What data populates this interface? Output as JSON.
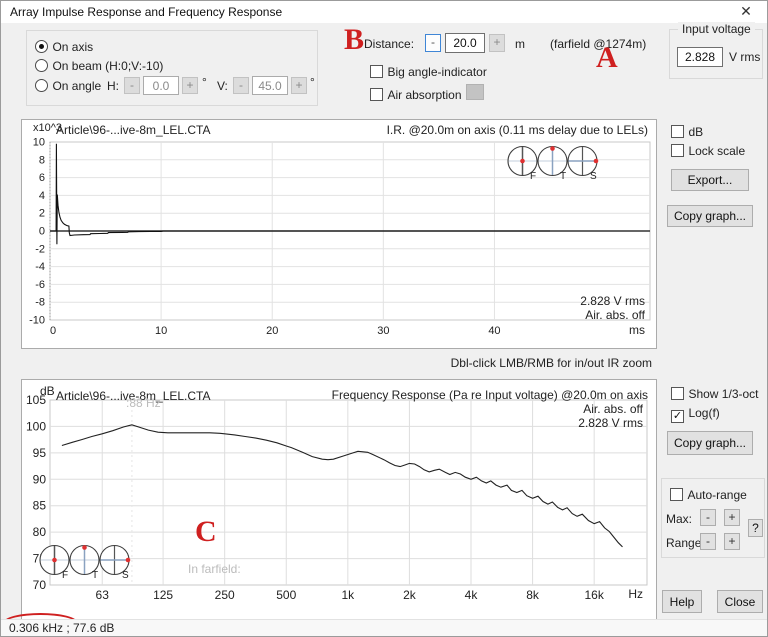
{
  "window": {
    "title": "Array Impulse Response and Frequency Response",
    "close_icon": "✕"
  },
  "top": {
    "position_group": {
      "radios": [
        {
          "label": "On axis",
          "selected": true
        },
        {
          "label": "On beam (H:0;V:-10)",
          "selected": false
        },
        {
          "label": "On angle",
          "selected": false
        }
      ],
      "h_label": "H:",
      "h_value": "0.0",
      "v_label": "V:",
      "v_value": "45.0",
      "minus": "-",
      "plus": "+",
      "degree": "°"
    },
    "distance": {
      "label": "Distance:",
      "minus": "-",
      "value": "20.0",
      "plus": "+",
      "unit": "m",
      "farfield": "(farfield @1274m)"
    },
    "big_angle_label": "Big angle-indicator",
    "air_absorption_label": "Air absorption",
    "input_voltage": {
      "title": "Input voltage",
      "value": "2.828",
      "unit": "V rms"
    }
  },
  "annotations": {
    "a": "A",
    "b": "B",
    "c": "C"
  },
  "ir_chart": {
    "unit_label": "x10^3",
    "file_label": "Article\\96-...ive-8m_LEL.CTA",
    "title": "I.R. @20.0m on axis (0.11 ms delay due to LELs)",
    "overlay_line1": "2.828 V rms",
    "overlay_line2": "Air. abs. off",
    "x_unit": "ms",
    "dials": [
      "F",
      "T",
      "S"
    ]
  },
  "ir_hint": "Dbl-click LMB/RMB for in/out IR zoom",
  "fr_chart": {
    "unit_label": "dB",
    "file_label": "Article\\96-...ive-8m_LEL.CTA",
    "title": "Frequency Response (Pa re Input voltage) @20.0m on axis",
    "overlay_line1": "Air. abs. off",
    "overlay_line2": "2.828 V rms",
    "cursor_label": ":88 Hz",
    "cursor_freq": 88,
    "farfield_label": "In farfield:",
    "x_unit": "Hz",
    "dials": [
      "F",
      "T",
      "S"
    ]
  },
  "right_panel": {
    "ir": {
      "db_label": "dB",
      "lock_scale_label": "Lock scale",
      "export_button": "Export...",
      "copy_button": "Copy graph..."
    },
    "fr": {
      "third_oct_label": "Show 1/3-oct",
      "logf_label": "Log(f)",
      "logf_check": "✓",
      "copy_button": "Copy graph...",
      "auto_range_label": "Auto-range",
      "max_label": "Max:",
      "range_label": "Range:",
      "minus": "-",
      "plus": "+",
      "help_mark": "?"
    },
    "help_button": "Help",
    "close_button": "Close"
  },
  "status_bar": {
    "text": "0.306 kHz ; 77.6 dB"
  },
  "chart_data": [
    {
      "type": "line",
      "title": "I.R. @20.0m on axis (0.11 ms delay due to LELs)",
      "xlabel": "ms",
      "ylabel": "x10^3 (linear amplitude)",
      "xlim": [
        0,
        54
      ],
      "ylim": [
        -10,
        10
      ],
      "x_ticks": [
        0,
        10,
        20,
        30,
        40
      ],
      "y_ticks": [
        10,
        8,
        6,
        4,
        2,
        0,
        -2,
        -4,
        -6,
        -8,
        -10
      ],
      "grid": true,
      "legend": "none",
      "points": [
        [
          0,
          0
        ],
        [
          0.55,
          0
        ],
        [
          0.58,
          9.8
        ],
        [
          0.62,
          -1.5
        ],
        [
          0.66,
          4.1
        ],
        [
          0.72,
          2.9
        ],
        [
          0.8,
          2.1
        ],
        [
          0.9,
          1.55
        ],
        [
          1.0,
          1.2
        ],
        [
          1.15,
          0.92
        ],
        [
          1.3,
          0.75
        ],
        [
          1.5,
          0.62
        ],
        [
          1.7,
          0.55
        ],
        [
          1.74,
          -0.2
        ],
        [
          1.8,
          -0.5
        ],
        [
          2.2,
          -0.45
        ],
        [
          3.0,
          -0.42
        ],
        [
          3.6,
          -0.4
        ],
        [
          3.65,
          -0.3
        ],
        [
          4.5,
          -0.28
        ],
        [
          5.2,
          -0.26
        ],
        [
          5.25,
          -0.18
        ],
        [
          6.5,
          -0.16
        ],
        [
          7.0,
          -0.15
        ],
        [
          7.05,
          -0.09
        ],
        [
          8.0,
          -0.07
        ],
        [
          9.0,
          -0.05
        ],
        [
          10.0,
          -0.04
        ],
        [
          10.2,
          0
        ],
        [
          45,
          0
        ]
      ]
    },
    {
      "type": "line",
      "x_scale": "log",
      "title": "Frequency Response (Pa re Input voltage) @20.0m on axis",
      "xlabel": "Hz",
      "ylabel": "dB",
      "xlim": [
        35,
        29000
      ],
      "ylim": [
        70,
        105
      ],
      "x_ticks": [
        {
          "v": 63,
          "label": "63"
        },
        {
          "v": 125,
          "label": "125"
        },
        {
          "v": 250,
          "label": "250"
        },
        {
          "v": 500,
          "label": "500"
        },
        {
          "v": 1000,
          "label": "1k"
        },
        {
          "v": 2000,
          "label": "2k"
        },
        {
          "v": 4000,
          "label": "4k"
        },
        {
          "v": 8000,
          "label": "8k"
        },
        {
          "v": 16000,
          "label": "16k"
        }
      ],
      "y_ticks": [
        105,
        100,
        95,
        90,
        85,
        80,
        75,
        70
      ],
      "grid": true,
      "legend": "none",
      "points": [
        [
          40,
          96.4
        ],
        [
          45,
          97.0
        ],
        [
          50,
          97.5
        ],
        [
          56,
          98.1
        ],
        [
          63,
          98.6
        ],
        [
          71,
          99.2
        ],
        [
          80,
          99.9
        ],
        [
          88,
          100.3
        ],
        [
          95,
          99.9
        ],
        [
          106,
          99.3
        ],
        [
          118,
          98.9
        ],
        [
          132,
          98.8
        ],
        [
          150,
          98.8
        ],
        [
          170,
          98.8
        ],
        [
          190,
          98.8
        ],
        [
          212,
          98.8
        ],
        [
          237,
          98.7
        ],
        [
          250,
          98.6
        ],
        [
          280,
          98.4
        ],
        [
          315,
          98.1
        ],
        [
          355,
          97.8
        ],
        [
          400,
          97.4
        ],
        [
          450,
          96.9
        ],
        [
          500,
          96.3
        ],
        [
          530,
          96.0
        ],
        [
          600,
          95.1
        ],
        [
          670,
          94.3
        ],
        [
          750,
          93.8
        ],
        [
          800,
          93.7
        ],
        [
          850,
          93.8
        ],
        [
          950,
          94.4
        ],
        [
          1060,
          95.0
        ],
        [
          1120,
          95.3
        ],
        [
          1250,
          95.1
        ],
        [
          1320,
          94.7
        ],
        [
          1500,
          93.7
        ],
        [
          1600,
          93.1
        ],
        [
          1700,
          92.6
        ],
        [
          1800,
          92.4
        ],
        [
          1900,
          92.7
        ],
        [
          2000,
          93.0
        ],
        [
          2120,
          92.9
        ],
        [
          2240,
          92.4
        ],
        [
          2360,
          91.8
        ],
        [
          2500,
          91.4
        ],
        [
          2650,
          91.7
        ],
        [
          2800,
          91.9
        ],
        [
          3000,
          91.3
        ],
        [
          3150,
          90.9
        ],
        [
          3350,
          91.3
        ],
        [
          3550,
          91.0
        ],
        [
          3750,
          90.4
        ],
        [
          4000,
          90.0
        ],
        [
          4250,
          90.4
        ],
        [
          4500,
          89.7
        ],
        [
          4750,
          89.3
        ],
        [
          5000,
          89.7
        ],
        [
          5300,
          88.9
        ],
        [
          5600,
          88.5
        ],
        [
          6000,
          88.9
        ],
        [
          6300,
          87.9
        ],
        [
          6700,
          87.5
        ],
        [
          7100,
          87.9
        ],
        [
          7500,
          86.9
        ],
        [
          8000,
          86.4
        ],
        [
          8500,
          86.8
        ],
        [
          9000,
          85.8
        ],
        [
          9500,
          85.3
        ],
        [
          10000,
          85.7
        ],
        [
          10600,
          84.7
        ],
        [
          11200,
          84.2
        ],
        [
          11800,
          84.6
        ],
        [
          12500,
          83.5
        ],
        [
          13200,
          83.0
        ],
        [
          14000,
          83.4
        ],
        [
          15000,
          82.2
        ],
        [
          16000,
          81.6
        ],
        [
          17000,
          82.0
        ],
        [
          18000,
          80.8
        ],
        [
          19000,
          80.1
        ],
        [
          20000,
          79.0
        ],
        [
          21000,
          78.0
        ],
        [
          22000,
          77.2
        ]
      ]
    }
  ]
}
